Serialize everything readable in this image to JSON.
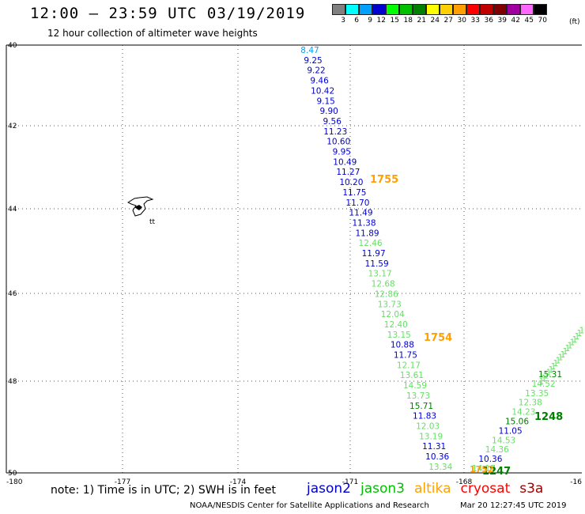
{
  "header": {
    "title": "12:00 – 23:59 UTC 03/19/2019",
    "subtitle": "12 hour collection of altimeter wave heights"
  },
  "legend": {
    "unit": "(ft)",
    "bins": [
      {
        "label": "3",
        "color": "#808080"
      },
      {
        "label": "6",
        "color": "#00ffff"
      },
      {
        "label": "9",
        "color": "#00a0ff"
      },
      {
        "label": "12",
        "color": "#0000d0"
      },
      {
        "label": "15",
        "color": "#00ff00"
      },
      {
        "label": "18",
        "color": "#00c000"
      },
      {
        "label": "21",
        "color": "#008000"
      },
      {
        "label": "24",
        "color": "#ffff00"
      },
      {
        "label": "27",
        "color": "#ffd000"
      },
      {
        "label": "30",
        "color": "#ffa000"
      },
      {
        "label": "33",
        "color": "#ff0000"
      },
      {
        "label": "36",
        "color": "#c00000"
      },
      {
        "label": "39",
        "color": "#800000"
      },
      {
        "label": "42",
        "color": "#a000a0"
      },
      {
        "label": "45",
        "color": "#ff66ff"
      },
      {
        "label": "70",
        "color": "#000000"
      }
    ]
  },
  "map": {
    "lat_labels": [
      "40",
      "42",
      "44",
      "46",
      "48",
      "50"
    ],
    "lon_labels": [
      "-180",
      "-177",
      "-174",
      "-171",
      "-168",
      "-16"
    ],
    "island_label": "tt"
  },
  "tracks": [
    {
      "name": "track-a",
      "color": "#0000d0",
      "points": [
        {
          "text": "8.47",
          "color": "#00a0ff"
        },
        {
          "text": "9.25"
        },
        {
          "text": "9.22"
        },
        {
          "text": "9.46"
        },
        {
          "text": "10.42"
        },
        {
          "text": "9.15"
        },
        {
          "text": "9.90"
        },
        {
          "text": "9.56"
        },
        {
          "text": "11.23"
        },
        {
          "text": "10.60"
        },
        {
          "text": "9.95"
        },
        {
          "text": "10.49"
        },
        {
          "text": "11.27"
        },
        {
          "text": "10.20"
        },
        {
          "text": "11.75"
        },
        {
          "text": "11.70"
        },
        {
          "text": "11.49"
        },
        {
          "text": "11.38"
        },
        {
          "text": "11.89"
        },
        {
          "text": "12.46",
          "color": "#66e066"
        },
        {
          "text": "11.97"
        },
        {
          "text": "11.59"
        },
        {
          "text": "13.17",
          "color": "#66e066"
        },
        {
          "text": "12.68",
          "color": "#66e066"
        },
        {
          "text": "12.86",
          "color": "#66e066"
        },
        {
          "text": "13.73",
          "color": "#66e066"
        },
        {
          "text": "12.04",
          "color": "#66e066"
        },
        {
          "text": "12.40",
          "color": "#66e066"
        },
        {
          "text": "13.15",
          "color": "#66e066"
        },
        {
          "text": "10.88"
        },
        {
          "text": "11.75"
        },
        {
          "text": "12.17",
          "color": "#66e066"
        },
        {
          "text": "13.61",
          "color": "#66e066"
        },
        {
          "text": "14.59",
          "color": "#66e066"
        },
        {
          "text": "13.73",
          "color": "#66e066"
        },
        {
          "text": "15.71",
          "color": "#008000"
        },
        {
          "text": "11.83"
        },
        {
          "text": "12.03",
          "color": "#66e066"
        },
        {
          "text": "13.19",
          "color": "#66e066"
        },
        {
          "text": "11.31"
        },
        {
          "text": "10.36"
        },
        {
          "text": "13.34",
          "color": "#66e066"
        }
      ]
    },
    {
      "name": "track-b",
      "color": "#66e066",
      "points": [
        {
          "text": "14.17"
        },
        {
          "text": "10.36",
          "color": "#0000d0"
        },
        {
          "text": "14.36"
        },
        {
          "text": "14.53"
        },
        {
          "text": "11.05",
          "color": "#0000d0"
        },
        {
          "text": "15.06",
          "color": "#008000"
        },
        {
          "text": "14.23"
        },
        {
          "text": "12.38"
        },
        {
          "text": "13.35"
        },
        {
          "text": "14.52"
        },
        {
          "text": "15.31",
          "color": "#008000"
        }
      ]
    }
  ],
  "time_labels": [
    {
      "text": "1755",
      "color": "#ffa000"
    },
    {
      "text": "1754",
      "color": "#ffa000"
    },
    {
      "text": "1248",
      "color": "#008000"
    },
    {
      "text": "1247",
      "color": "#008000"
    },
    {
      "text": "1752",
      "color": "#ffa000"
    }
  ],
  "footer": {
    "note": "note:  1) Time is in UTC;  2) SWH is in feet",
    "satellites": [
      {
        "name": "jason2",
        "color": "#0000d0"
      },
      {
        "name": "jason3",
        "color": "#00c000"
      },
      {
        "name": "altika",
        "color": "#ffa000"
      },
      {
        "name": "cryosat",
        "color": "#ff0000"
      },
      {
        "name": "s3a",
        "color": "#a00000"
      }
    ],
    "credit": "NOAA/NESDIS Center for Satellite Applications and Research",
    "timestamp": "Mar 20 12:27:45 UTC 2019"
  }
}
